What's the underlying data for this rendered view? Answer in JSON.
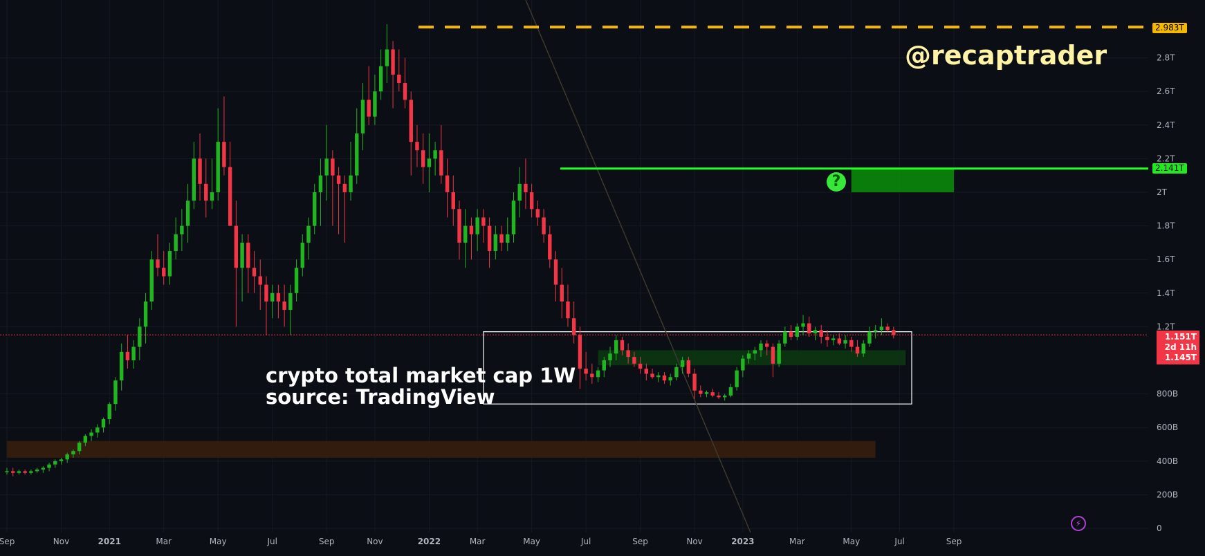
{
  "watermark": "@recaptrader",
  "caption": {
    "line1": "crypto total market cap 1W",
    "line2": "source: TradingView"
  },
  "price_labels": {
    "ath": "2.983T",
    "resistance": "2.141T",
    "last": "1.151T",
    "countdown": "2d 11h",
    "prev": "1.145T"
  },
  "colors": {
    "up": "#22b522",
    "down": "#f23645",
    "ath_line": "#f5b800",
    "zone_green": "#0a8f0a",
    "zone_orange": "#3a1e0c",
    "background": "#0b0e14"
  },
  "icons": {
    "question": "question-icon",
    "bolt": "lightning-icon"
  },
  "chart_data": {
    "type": "candlestick",
    "title": "crypto total market cap 1W",
    "ylabel": "",
    "xlabel": "",
    "ylim": [
      0,
      3.15
    ],
    "y_unit": "T",
    "y_ticks": [
      {
        "v": 0,
        "label": "0"
      },
      {
        "v": 0.2,
        "label": "200B"
      },
      {
        "v": 0.4,
        "label": "400B"
      },
      {
        "v": 0.6,
        "label": "600B"
      },
      {
        "v": 0.8,
        "label": "800B"
      },
      {
        "v": 1.2,
        "label": "1.2T"
      },
      {
        "v": 1.4,
        "label": "1.4T"
      },
      {
        "v": 1.6,
        "label": "1.6T"
      },
      {
        "v": 1.8,
        "label": "1.8T"
      },
      {
        "v": 2.0,
        "label": "2T"
      },
      {
        "v": 2.2,
        "label": "2.2T"
      },
      {
        "v": 2.4,
        "label": "2.4T"
      },
      {
        "v": 2.6,
        "label": "2.6T"
      },
      {
        "v": 2.8,
        "label": "2.8T"
      }
    ],
    "x_ticks": [
      {
        "w": 0,
        "label": "Sep",
        "bold": false
      },
      {
        "w": 9,
        "label": "Nov",
        "bold": false
      },
      {
        "w": 17,
        "label": "2021",
        "bold": true
      },
      {
        "w": 26,
        "label": "Mar",
        "bold": false
      },
      {
        "w": 35,
        "label": "May",
        "bold": false
      },
      {
        "w": 44,
        "label": "Jul",
        "bold": false
      },
      {
        "w": 53,
        "label": "Sep",
        "bold": false
      },
      {
        "w": 61,
        "label": "Nov",
        "bold": false
      },
      {
        "w": 70,
        "label": "2022",
        "bold": true
      },
      {
        "w": 78,
        "label": "Mar",
        "bold": false
      },
      {
        "w": 87,
        "label": "May",
        "bold": false
      },
      {
        "w": 96,
        "label": "Jul",
        "bold": false
      },
      {
        "w": 105,
        "label": "Sep",
        "bold": false
      },
      {
        "w": 114,
        "label": "Nov",
        "bold": false
      },
      {
        "w": 122,
        "label": "2023",
        "bold": true
      },
      {
        "w": 131,
        "label": "Mar",
        "bold": false
      },
      {
        "w": 140,
        "label": "May",
        "bold": false
      },
      {
        "w": 148,
        "label": "Jul",
        "bold": false
      },
      {
        "w": 157,
        "label": "Sep",
        "bold": false
      }
    ],
    "candles": [
      [
        0.34,
        0.36,
        0.32,
        0.34
      ],
      [
        0.34,
        0.36,
        0.31,
        0.33
      ],
      [
        0.33,
        0.35,
        0.32,
        0.34
      ],
      [
        0.34,
        0.35,
        0.32,
        0.33
      ],
      [
        0.33,
        0.35,
        0.32,
        0.34
      ],
      [
        0.34,
        0.36,
        0.33,
        0.35
      ],
      [
        0.35,
        0.37,
        0.33,
        0.36
      ],
      [
        0.36,
        0.39,
        0.34,
        0.38
      ],
      [
        0.38,
        0.41,
        0.36,
        0.4
      ],
      [
        0.4,
        0.42,
        0.38,
        0.41
      ],
      [
        0.41,
        0.45,
        0.39,
        0.44
      ],
      [
        0.44,
        0.47,
        0.42,
        0.46
      ],
      [
        0.46,
        0.52,
        0.44,
        0.51
      ],
      [
        0.51,
        0.56,
        0.49,
        0.55
      ],
      [
        0.55,
        0.59,
        0.52,
        0.57
      ],
      [
        0.57,
        0.62,
        0.54,
        0.6
      ],
      [
        0.6,
        0.66,
        0.57,
        0.65
      ],
      [
        0.65,
        0.75,
        0.62,
        0.74
      ],
      [
        0.74,
        0.9,
        0.7,
        0.88
      ],
      [
        0.88,
        1.1,
        0.82,
        1.05
      ],
      [
        1.05,
        1.15,
        0.95,
        1.0
      ],
      [
        1.0,
        1.12,
        0.95,
        1.08
      ],
      [
        1.08,
        1.25,
        1.0,
        1.2
      ],
      [
        1.2,
        1.4,
        1.1,
        1.35
      ],
      [
        1.35,
        1.65,
        1.3,
        1.6
      ],
      [
        1.6,
        1.75,
        1.5,
        1.55
      ],
      [
        1.55,
        1.65,
        1.45,
        1.5
      ],
      [
        1.5,
        1.7,
        1.45,
        1.65
      ],
      [
        1.65,
        1.85,
        1.6,
        1.75
      ],
      [
        1.75,
        1.9,
        1.65,
        1.8
      ],
      [
        1.8,
        2.05,
        1.7,
        1.95
      ],
      [
        1.95,
        2.3,
        1.9,
        2.2
      ],
      [
        2.2,
        2.35,
        1.95,
        2.05
      ],
      [
        2.05,
        2.2,
        1.85,
        1.95
      ],
      [
        1.95,
        2.2,
        1.9,
        2.0
      ],
      [
        2.0,
        2.5,
        1.95,
        2.3
      ],
      [
        2.3,
        2.57,
        2.1,
        2.15
      ],
      [
        2.15,
        2.3,
        1.8,
        1.8
      ],
      [
        1.8,
        1.95,
        1.2,
        1.55
      ],
      [
        1.55,
        1.75,
        1.35,
        1.7
      ],
      [
        1.7,
        1.75,
        1.4,
        1.55
      ],
      [
        1.55,
        1.65,
        1.4,
        1.5
      ],
      [
        1.5,
        1.6,
        1.3,
        1.45
      ],
      [
        1.45,
        1.5,
        1.15,
        1.35
      ],
      [
        1.35,
        1.45,
        1.25,
        1.4
      ],
      [
        1.4,
        1.45,
        1.25,
        1.35
      ],
      [
        1.35,
        1.45,
        1.2,
        1.3
      ],
      [
        1.3,
        1.45,
        1.15,
        1.4
      ],
      [
        1.4,
        1.6,
        1.35,
        1.55
      ],
      [
        1.55,
        1.75,
        1.5,
        1.7
      ],
      [
        1.7,
        1.85,
        1.6,
        1.8
      ],
      [
        1.8,
        2.05,
        1.75,
        2.0
      ],
      [
        2.0,
        2.2,
        1.8,
        2.1
      ],
      [
        2.1,
        2.4,
        1.95,
        2.2
      ],
      [
        2.2,
        2.25,
        1.8,
        2.1
      ],
      [
        2.1,
        2.15,
        1.75,
        2.05
      ],
      [
        2.05,
        2.1,
        1.7,
        2.0
      ],
      [
        2.0,
        2.3,
        1.95,
        2.1
      ],
      [
        2.1,
        2.5,
        2.05,
        2.35
      ],
      [
        2.35,
        2.65,
        2.25,
        2.55
      ],
      [
        2.55,
        2.75,
        2.4,
        2.45
      ],
      [
        2.45,
        2.7,
        2.4,
        2.6
      ],
      [
        2.6,
        2.85,
        2.55,
        2.75
      ],
      [
        2.75,
        3.0,
        2.65,
        2.85
      ],
      [
        2.85,
        2.9,
        2.5,
        2.7
      ],
      [
        2.7,
        2.85,
        2.6,
        2.65
      ],
      [
        2.65,
        2.8,
        2.5,
        2.55
      ],
      [
        2.55,
        2.6,
        2.1,
        2.3
      ],
      [
        2.3,
        2.4,
        2.15,
        2.25
      ],
      [
        2.25,
        2.35,
        2.05,
        2.15
      ],
      [
        2.15,
        2.35,
        2.0,
        2.2
      ],
      [
        2.2,
        2.3,
        2.1,
        2.25
      ],
      [
        2.25,
        2.4,
        2.05,
        2.1
      ],
      [
        2.1,
        2.2,
        1.85,
        2.0
      ],
      [
        2.0,
        2.1,
        1.8,
        1.9
      ],
      [
        1.9,
        1.95,
        1.6,
        1.7
      ],
      [
        1.7,
        1.9,
        1.55,
        1.8
      ],
      [
        1.8,
        1.85,
        1.6,
        1.75
      ],
      [
        1.75,
        1.9,
        1.65,
        1.85
      ],
      [
        1.85,
        1.9,
        1.7,
        1.8
      ],
      [
        1.8,
        1.85,
        1.55,
        1.65
      ],
      [
        1.65,
        1.8,
        1.6,
        1.75
      ],
      [
        1.75,
        1.8,
        1.65,
        1.7
      ],
      [
        1.7,
        1.85,
        1.65,
        1.75
      ],
      [
        1.75,
        2.0,
        1.7,
        1.95
      ],
      [
        1.95,
        2.15,
        1.85,
        2.05
      ],
      [
        2.05,
        2.2,
        1.9,
        2.0
      ],
      [
        2.0,
        2.05,
        1.85,
        1.9
      ],
      [
        1.9,
        1.95,
        1.8,
        1.85
      ],
      [
        1.85,
        1.9,
        1.7,
        1.75
      ],
      [
        1.75,
        1.8,
        1.55,
        1.6
      ],
      [
        1.6,
        1.65,
        1.35,
        1.45
      ],
      [
        1.45,
        1.55,
        1.25,
        1.35
      ],
      [
        1.35,
        1.45,
        1.2,
        1.25
      ],
      [
        1.25,
        1.35,
        1.1,
        1.15
      ],
      [
        1.15,
        1.2,
        0.83,
        0.95
      ],
      [
        0.95,
        1.05,
        0.88,
        0.92
      ],
      [
        0.92,
        0.98,
        0.86,
        0.9
      ],
      [
        0.9,
        0.96,
        0.87,
        0.94
      ],
      [
        0.94,
        1.02,
        0.9,
        1.0
      ],
      [
        1.0,
        1.08,
        0.96,
        1.04
      ],
      [
        1.04,
        1.15,
        1.0,
        1.12
      ],
      [
        1.12,
        1.14,
        1.03,
        1.06
      ],
      [
        1.06,
        1.1,
        0.98,
        1.02
      ],
      [
        1.02,
        1.05,
        0.96,
        0.98
      ],
      [
        0.98,
        1.02,
        0.92,
        0.95
      ],
      [
        0.95,
        0.98,
        0.88,
        0.92
      ],
      [
        0.92,
        0.95,
        0.89,
        0.9
      ],
      [
        0.9,
        0.93,
        0.87,
        0.91
      ],
      [
        0.91,
        0.93,
        0.86,
        0.88
      ],
      [
        0.88,
        0.92,
        0.85,
        0.9
      ],
      [
        0.9,
        0.98,
        0.88,
        0.96
      ],
      [
        0.96,
        1.02,
        0.92,
        1.0
      ],
      [
        1.0,
        1.02,
        0.9,
        0.92
      ],
      [
        0.92,
        0.95,
        0.77,
        0.82
      ],
      [
        0.82,
        0.85,
        0.78,
        0.8
      ],
      [
        0.8,
        0.82,
        0.78,
        0.81
      ],
      [
        0.81,
        0.83,
        0.78,
        0.79
      ],
      [
        0.79,
        0.81,
        0.77,
        0.78
      ],
      [
        0.78,
        0.8,
        0.76,
        0.79
      ],
      [
        0.79,
        0.86,
        0.78,
        0.84
      ],
      [
        0.84,
        0.96,
        0.82,
        0.94
      ],
      [
        0.94,
        1.03,
        0.9,
        1.01
      ],
      [
        1.01,
        1.06,
        0.98,
        1.04
      ],
      [
        1.04,
        1.08,
        1.0,
        1.06
      ],
      [
        1.06,
        1.12,
        1.02,
        1.1
      ],
      [
        1.1,
        1.12,
        1.03,
        1.08
      ],
      [
        1.08,
        1.1,
        0.9,
        0.98
      ],
      [
        0.98,
        1.12,
        0.96,
        1.1
      ],
      [
        1.1,
        1.2,
        1.08,
        1.17
      ],
      [
        1.17,
        1.21,
        1.12,
        1.14
      ],
      [
        1.14,
        1.22,
        1.12,
        1.2
      ],
      [
        1.2,
        1.27,
        1.15,
        1.22
      ],
      [
        1.22,
        1.26,
        1.14,
        1.16
      ],
      [
        1.16,
        1.2,
        1.12,
        1.18
      ],
      [
        1.18,
        1.21,
        1.1,
        1.14
      ],
      [
        1.14,
        1.18,
        1.08,
        1.12
      ],
      [
        1.12,
        1.15,
        1.09,
        1.13
      ],
      [
        1.13,
        1.16,
        1.09,
        1.1
      ],
      [
        1.1,
        1.15,
        1.07,
        1.12
      ],
      [
        1.12,
        1.14,
        1.05,
        1.08
      ],
      [
        1.08,
        1.12,
        1.02,
        1.04
      ],
      [
        1.04,
        1.12,
        1.02,
        1.1
      ],
      [
        1.1,
        1.2,
        1.08,
        1.17
      ],
      [
        1.17,
        1.21,
        1.13,
        1.18
      ],
      [
        1.18,
        1.25,
        1.15,
        1.2
      ],
      [
        1.2,
        1.22,
        1.17,
        1.18
      ],
      [
        1.18,
        1.2,
        1.13,
        1.15
      ]
    ],
    "lines": [
      {
        "name": "",
        "value": 2.983,
        "style": "dashed",
        "color": "#f5b800"
      },
      {
        "name": "",
        "value": 2.141,
        "style": "solid",
        "color": "#22ff22"
      },
      {
        "name": "",
        "value": 1.151,
        "style": "dotted",
        "color": "#f23645"
      }
    ],
    "zones": [
      {
        "from_week": 140,
        "to_week": 157,
        "low": 2.0,
        "high": 2.141,
        "color": "#0a8f0a"
      },
      {
        "from_week": 79,
        "to_week": 150,
        "low": 0.74,
        "high": 1.17,
        "color": "none",
        "border": "#ffffff"
      },
      {
        "from_week": 98,
        "to_week": 149,
        "low": 0.97,
        "high": 1.06,
        "color": "#0c3a12"
      },
      {
        "from_week": 0,
        "to_week": 144,
        "low": 0.42,
        "high": 0.52,
        "color": "#3a1e0c"
      }
    ]
  }
}
